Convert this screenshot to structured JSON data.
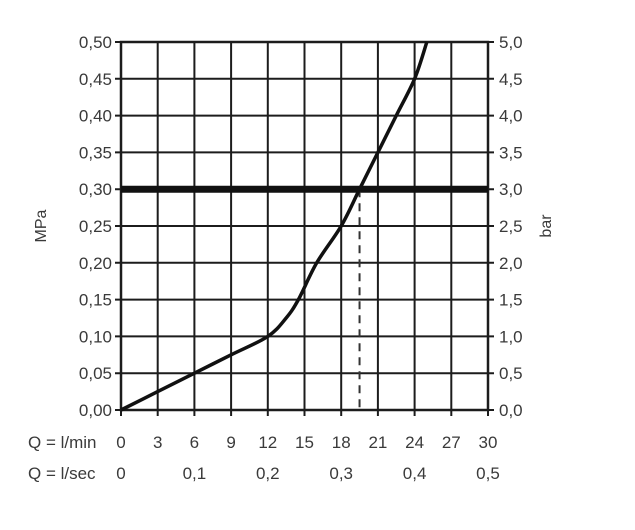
{
  "chart_data": {
    "type": "line",
    "title": "",
    "ylabel_left": "MPa",
    "ylabel_right": "bar",
    "xlabel_rows": [
      {
        "label": "Q = l/min",
        "ticks": [
          "0",
          "3",
          "6",
          "9",
          "12",
          "15",
          "18",
          "21",
          "24",
          "27",
          "30"
        ],
        "values": [
          0,
          3,
          6,
          9,
          12,
          15,
          18,
          21,
          24,
          27,
          30
        ]
      },
      {
        "label": "Q = l/sec",
        "ticks": [
          "0",
          "0,1",
          "0,2",
          "0,3",
          "0,4",
          "0,5"
        ],
        "values": [
          0,
          0.1,
          0.2,
          0.3,
          0.4,
          0.5
        ]
      }
    ],
    "yticks_left": [
      "0,00",
      "0,05",
      "0,10",
      "0,15",
      "0,20",
      "0,25",
      "0,30",
      "0,35",
      "0,40",
      "0,45",
      "0,50"
    ],
    "yticks_right": [
      "0,0",
      "0,5",
      "1,0",
      "1,5",
      "2,0",
      "2,5",
      "3,0",
      "3,5",
      "4,0",
      "4,5",
      "5,0"
    ],
    "xlim": [
      0,
      30
    ],
    "ylim": [
      0,
      0.5
    ],
    "grid": true,
    "series": [
      {
        "name": "flow curve",
        "x": [
          0,
          3,
          6,
          9,
          12,
          13.5,
          14.5,
          16,
          18,
          19.5,
          21,
          22.5,
          24,
          25
        ],
        "y": [
          0,
          0.025,
          0.05,
          0.075,
          0.1,
          0.125,
          0.15,
          0.2,
          0.25,
          0.3,
          0.35,
          0.4,
          0.45,
          0.5
        ]
      }
    ],
    "reference_line": {
      "y": 0.3,
      "label_left": "0,30",
      "label_right": "3,0",
      "style": "thick solid"
    },
    "reference_dashed": {
      "x": 19.5,
      "from_y": 0,
      "to_y": 0.3,
      "style": "dashed"
    }
  }
}
